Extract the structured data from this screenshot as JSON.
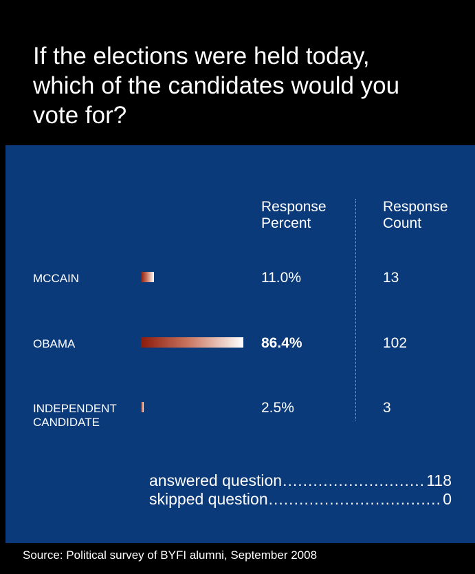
{
  "title": "If the elections were held today, which of the candidates would you vote for?",
  "columns": {
    "percent_header_line1": "Response",
    "percent_header_line2": "Percent",
    "count_header_line1": "Response",
    "count_header_line2": "Count"
  },
  "colors": {
    "background": "#000000",
    "panel": "#0b3a7a",
    "bar_dark": "#8b1a0c",
    "bar_light": "#ffffff"
  },
  "chart_data": {
    "type": "bar",
    "orientation": "horizontal",
    "categories": [
      "MCCAIN",
      "OBAMA",
      "INDEPENDENT CANDIDATE"
    ],
    "category_lines": [
      [
        "MCCAIN"
      ],
      [
        "OBAMA"
      ],
      [
        "INDEPENDENT",
        "CANDIDATE"
      ]
    ],
    "values": [
      11.0,
      86.4,
      2.5
    ],
    "percent_labels": [
      "11.0%",
      "86.4%",
      "2.5%"
    ],
    "counts": [
      "13",
      "102",
      "3"
    ],
    "highlight_index": 1,
    "xlim": [
      0,
      100
    ]
  },
  "summary": {
    "answered_label": "answered question",
    "answered_value": "118",
    "skipped_label": "skipped question",
    "skipped_value": "0"
  },
  "source": "Source: Political survey of BYFI alumni, September 2008"
}
